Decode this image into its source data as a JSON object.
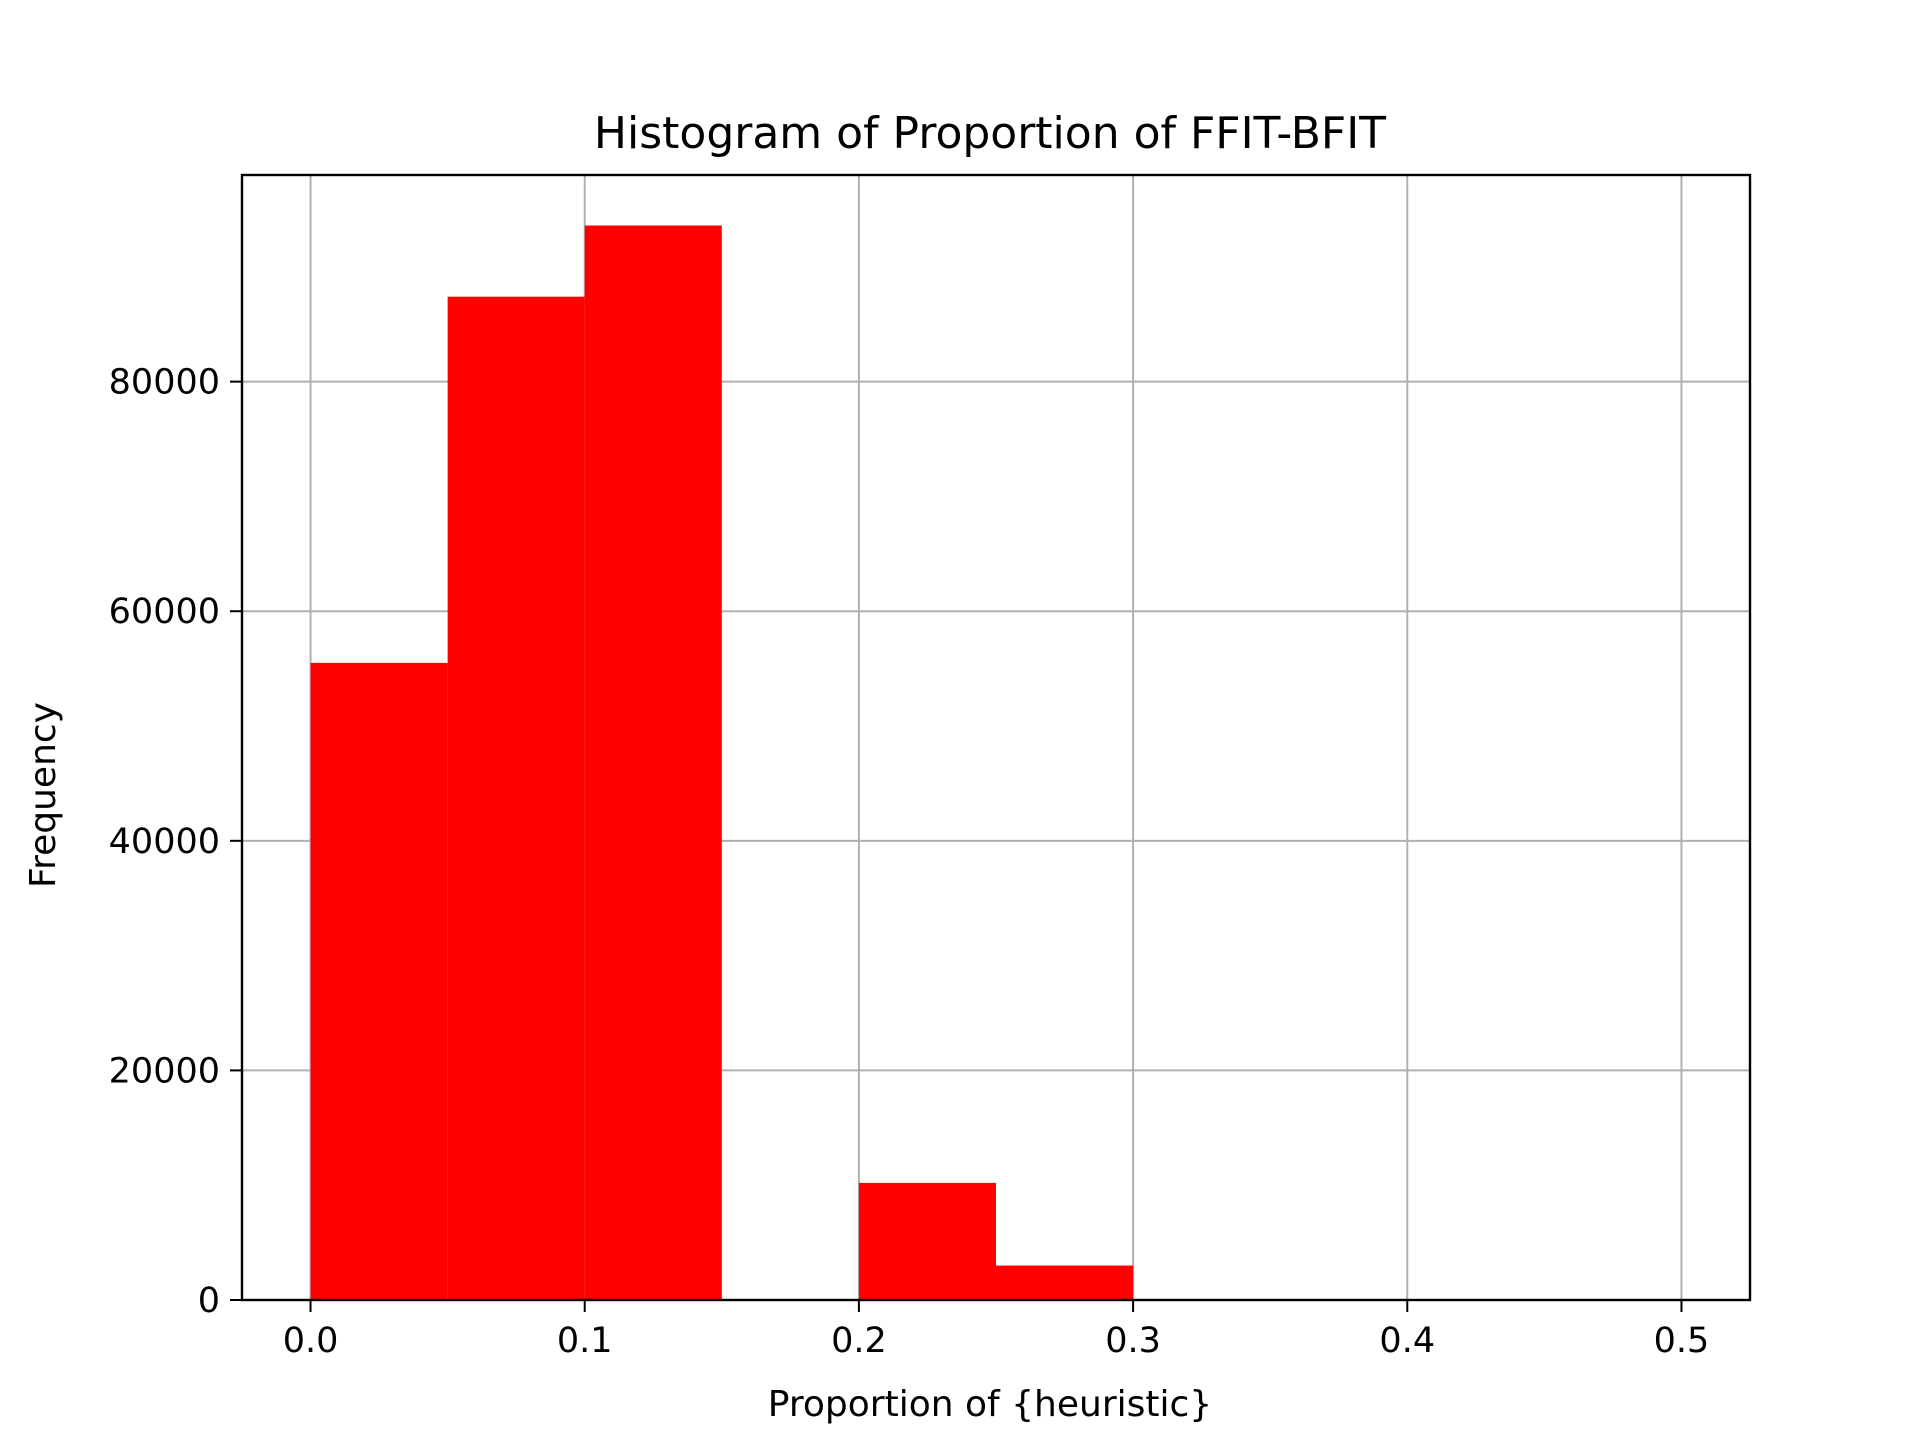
{
  "chart_data": {
    "type": "bar",
    "title": "Histogram of Proportion of FFIT-BFIT",
    "xlabel": "Proportion of {heuristic}",
    "ylabel": "Frequency",
    "xlim": [
      -0.025,
      0.525
    ],
    "ylim": [
      0,
      98000
    ],
    "x_ticks": [
      0.0,
      0.1,
      0.2,
      0.3,
      0.4,
      0.5
    ],
    "x_tick_labels": [
      "0.0",
      "0.1",
      "0.2",
      "0.3",
      "0.4",
      "0.5"
    ],
    "y_ticks": [
      0,
      20000,
      40000,
      60000,
      80000
    ],
    "y_tick_labels": [
      "0",
      "20000",
      "40000",
      "60000",
      "80000"
    ],
    "grid": true,
    "bar_color": "#ff0000",
    "bins": [
      {
        "start": 0.0,
        "end": 0.05,
        "count": 55500
      },
      {
        "start": 0.05,
        "end": 0.1,
        "count": 87400
      },
      {
        "start": 0.1,
        "end": 0.15,
        "count": 93600
      },
      {
        "start": 0.15,
        "end": 0.2,
        "count": 0
      },
      {
        "start": 0.2,
        "end": 0.25,
        "count": 10200
      },
      {
        "start": 0.25,
        "end": 0.3,
        "count": 3000
      },
      {
        "start": 0.3,
        "end": 0.35,
        "count": 0
      },
      {
        "start": 0.35,
        "end": 0.4,
        "count": 0
      },
      {
        "start": 0.4,
        "end": 0.45,
        "count": 0
      },
      {
        "start": 0.45,
        "end": 0.5,
        "count": 0
      }
    ]
  }
}
